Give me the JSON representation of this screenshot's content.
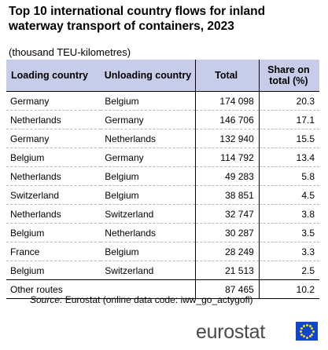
{
  "title": "Top 10 international country flows for inland waterway transport of containers, 2023",
  "subtitle": "(thousand TEU-kilometres)",
  "table": {
    "headers": [
      "Loading country",
      "Unloading country",
      "Total",
      "Share on total (%)"
    ],
    "rows": [
      {
        "loading": "Germany",
        "unloading": "Belgium",
        "total": "174 098",
        "share": "20.3"
      },
      {
        "loading": "Netherlands",
        "unloading": "Germany",
        "total": "146 706",
        "share": "17.1"
      },
      {
        "loading": "Germany",
        "unloading": "Netherlands",
        "total": "132 940",
        "share": "15.5"
      },
      {
        "loading": "Belgium",
        "unloading": "Germany",
        "total": "114 792",
        "share": "13.4"
      },
      {
        "loading": "Netherlands",
        "unloading": "Belgium",
        "total": "49 283",
        "share": "5.8"
      },
      {
        "loading": "Switzerland",
        "unloading": "Belgium",
        "total": "38 851",
        "share": "4.5"
      },
      {
        "loading": "Netherlands",
        "unloading": "Switzerland",
        "total": "32 747",
        "share": "3.8"
      },
      {
        "loading": "Belgium",
        "unloading": "Netherlands",
        "total": "30 287",
        "share": "3.5"
      },
      {
        "loading": "France",
        "unloading": "Belgium",
        "total": "28 249",
        "share": "3.3"
      },
      {
        "loading": "Belgium",
        "unloading": "Switzerland",
        "total": "21 513",
        "share": "2.5"
      }
    ],
    "other": {
      "label": "Other routes",
      "total": "87 465",
      "share": "10.2"
    }
  },
  "source": {
    "label": "Source:",
    "text": "Eurostat (online data code: iww_go_actygofl)"
  },
  "logo": {
    "text": "eurostat",
    "flag_color": "#0e47cb",
    "star_color": "#ffdd00"
  }
}
